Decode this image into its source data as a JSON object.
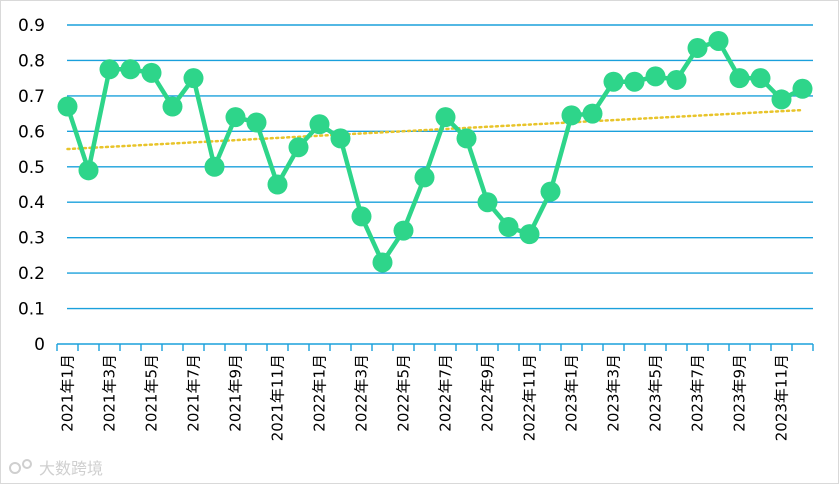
{
  "chart_data": {
    "type": "line",
    "title": "",
    "xlabel": "",
    "ylabel": "",
    "ylim": [
      0,
      0.9
    ],
    "y_ticks": [
      "0",
      "0.1",
      "0.2",
      "0.3",
      "0.4",
      "0.5",
      "0.6",
      "0.7",
      "0.8",
      "0.9"
    ],
    "grid": true,
    "legend": "none",
    "categories": [
      "2021年1月",
      "2021年2月",
      "2021年3月",
      "2021年4月",
      "2021年5月",
      "2021年6月",
      "2021年7月",
      "2021年8月",
      "2021年9月",
      "2021年10月",
      "2021年11月",
      "2021年12月",
      "2022年1月",
      "2022年2月",
      "2022年3月",
      "2022年4月",
      "2022年5月",
      "2022年6月",
      "2022年7月",
      "2022年8月",
      "2022年9月",
      "2022年10月",
      "2022年11月",
      "2022年12月",
      "2023年1月",
      "2023年2月",
      "2023年3月",
      "2023年4月",
      "2023年5月",
      "2023年6月",
      "2023年7月",
      "2023年8月",
      "2023年9月",
      "2023年10月",
      "2023年11月",
      "2023年12月"
    ],
    "x_tick_labels": [
      "2021年1月",
      "2021年3月",
      "2021年5月",
      "2021年7月",
      "2021年9月",
      "2021年11月",
      "2022年1月",
      "2022年3月",
      "2022年5月",
      "2022年7月",
      "2022年9月",
      "2022年11月",
      "2023年1月",
      "2023年3月",
      "2023年5月",
      "2023年7月",
      "2023年9月",
      "2023年11月"
    ],
    "series": [
      {
        "values": [
          0.67,
          0.49,
          0.775,
          0.775,
          0.765,
          0.67,
          0.75,
          0.5,
          0.64,
          0.625,
          0.45,
          0.555,
          0.62,
          0.58,
          0.36,
          0.23,
          0.32,
          0.47,
          0.64,
          0.58,
          0.4,
          0.33,
          0.31,
          0.43,
          0.645,
          0.65,
          0.74,
          0.74,
          0.755,
          0.745,
          0.835,
          0.855,
          0.75,
          0.75,
          0.69,
          0.72
        ],
        "color": "#2ed58a",
        "marker": "circle"
      }
    ],
    "trendline": {
      "type": "linear",
      "start": 0.55,
      "end": 0.66,
      "color": "#e8c42a",
      "style": "dotted"
    }
  },
  "colors": {
    "grid": "#1aa0dc",
    "axis": "#1aa0dc",
    "text": "#000000"
  },
  "watermark": "大数跨境"
}
